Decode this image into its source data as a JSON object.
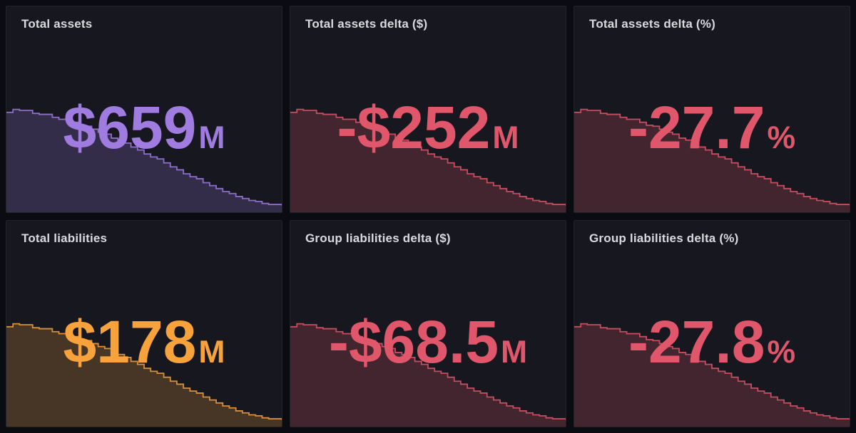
{
  "page": {
    "background": "#0b0c11",
    "panel_background": "#17181f",
    "panel_border": "#22242c",
    "title_color": "#d9dadd"
  },
  "sparkline_shape": [
    0.97,
    1.0,
    0.99,
    0.99,
    0.96,
    0.95,
    0.95,
    0.92,
    0.9,
    0.9,
    0.87,
    0.84,
    0.83,
    0.8,
    0.77,
    0.75,
    0.71,
    0.69,
    0.66,
    0.62,
    0.59,
    0.55,
    0.52,
    0.5,
    0.46,
    0.42,
    0.39,
    0.35,
    0.32,
    0.3,
    0.26,
    0.23,
    0.2,
    0.17,
    0.15,
    0.12,
    0.1,
    0.08,
    0.07,
    0.05,
    0.04,
    0.04,
    0.03
  ],
  "panels": [
    {
      "title": "Total assets",
      "value": "$659",
      "suffix": "M",
      "color": "#a07be0"
    },
    {
      "title": "Total assets delta ($)",
      "value": "-$252",
      "suffix": "M",
      "color": "#e0566a"
    },
    {
      "title": "Total assets delta (%)",
      "value": "-27.7",
      "suffix": "%",
      "color": "#e0566a"
    },
    {
      "title": "Total liabilities",
      "value": "$178",
      "suffix": "M",
      "color": "#f7a23b"
    },
    {
      "title": "Group liabilities delta ($)",
      "value": "-$68.5",
      "suffix": "M",
      "color": "#e0566a"
    },
    {
      "title": "Group liabilities delta (%)",
      "value": "-27.8",
      "suffix": "%",
      "color": "#e0566a"
    }
  ],
  "chart_data": [
    {
      "type": "area",
      "title": "Total assets",
      "stat": "$659M",
      "unit": "USD millions",
      "approx_start": 911,
      "approx_end": 659,
      "trend": "declining stepped decay",
      "sparkline_normalized_ref": "sparkline_shape",
      "color": "#a07be0",
      "legend": "none",
      "axes": "hidden"
    },
    {
      "type": "area",
      "title": "Total assets delta ($)",
      "stat": "-$252M",
      "unit": "USD millions",
      "approx_start": 0,
      "approx_end": -252,
      "trend": "declining stepped decay",
      "sparkline_normalized_ref": "sparkline_shape",
      "color": "#e0566a",
      "legend": "none",
      "axes": "hidden"
    },
    {
      "type": "area",
      "title": "Total assets delta (%)",
      "stat": "-27.7%",
      "unit": "percent",
      "approx_start": 0,
      "approx_end": -27.7,
      "trend": "declining stepped decay",
      "sparkline_normalized_ref": "sparkline_shape",
      "color": "#e0566a",
      "legend": "none",
      "axes": "hidden"
    },
    {
      "type": "area",
      "title": "Total liabilities",
      "stat": "$178M",
      "unit": "USD millions",
      "approx_start": 246.5,
      "approx_end": 178,
      "trend": "declining stepped decay",
      "sparkline_normalized_ref": "sparkline_shape",
      "color": "#f7a23b",
      "legend": "none",
      "axes": "hidden"
    },
    {
      "type": "area",
      "title": "Group liabilities delta ($)",
      "stat": "-$68.5M",
      "unit": "USD millions",
      "approx_start": 0,
      "approx_end": -68.5,
      "trend": "declining stepped decay",
      "sparkline_normalized_ref": "sparkline_shape",
      "color": "#e0566a",
      "legend": "none",
      "axes": "hidden"
    },
    {
      "type": "area",
      "title": "Group liabilities delta (%)",
      "stat": "-27.8%",
      "unit": "percent",
      "approx_start": 0,
      "approx_end": -27.8,
      "trend": "declining stepped decay",
      "sparkline_normalized_ref": "sparkline_shape",
      "color": "#e0566a",
      "legend": "none",
      "axes": "hidden"
    }
  ]
}
